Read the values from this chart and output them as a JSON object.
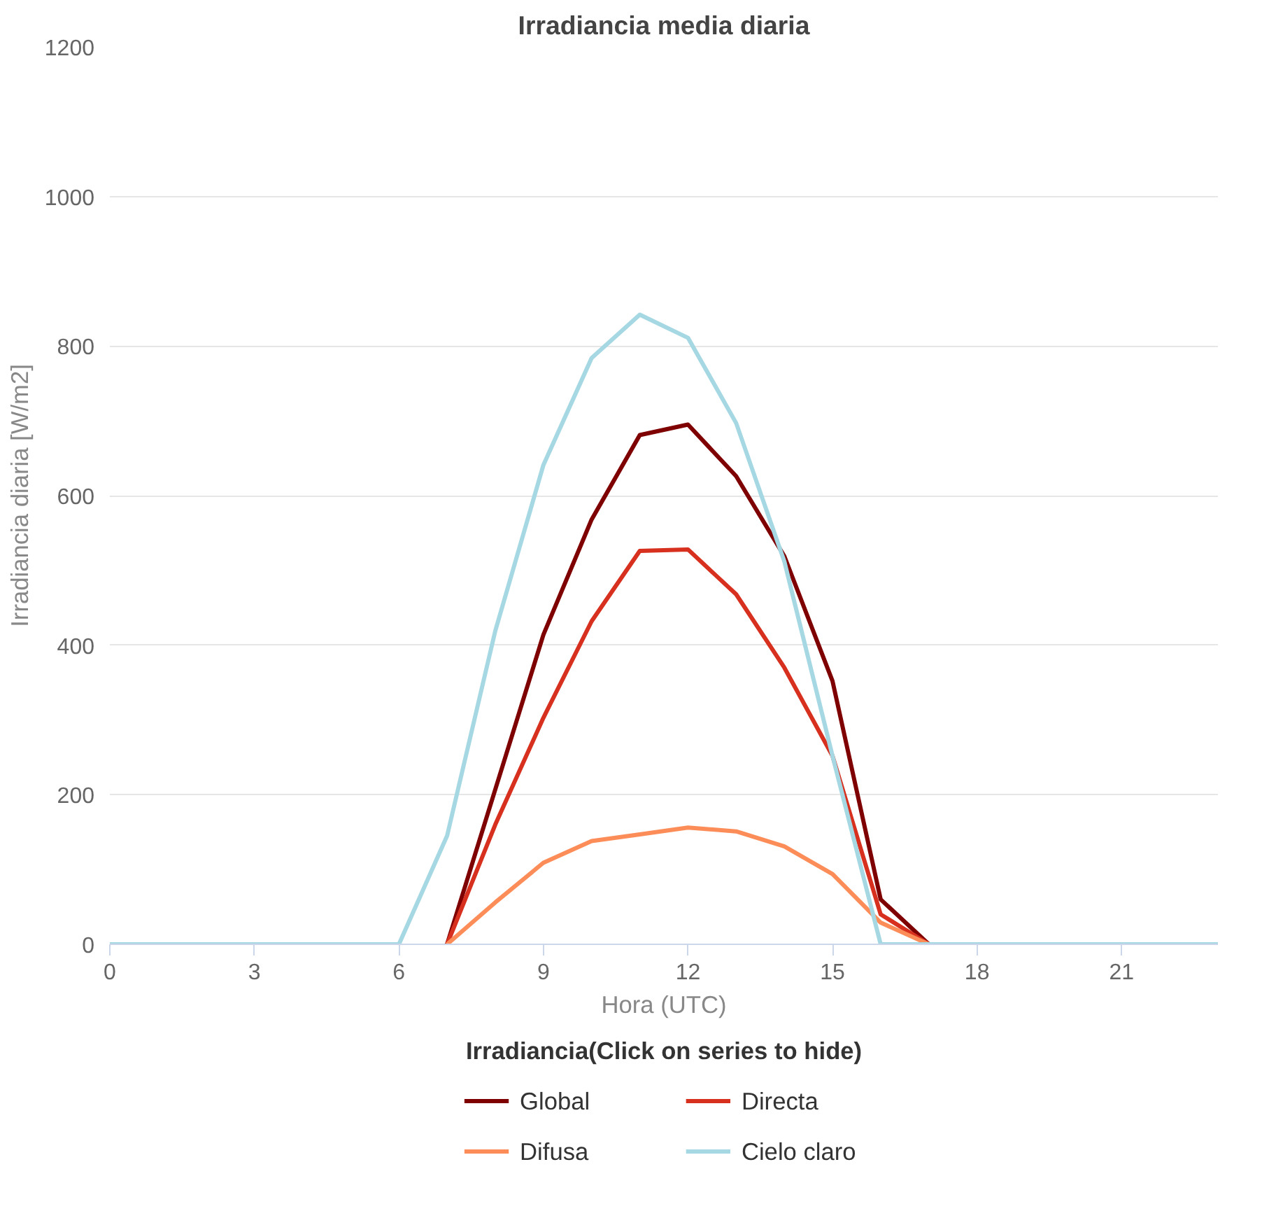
{
  "chart_data": {
    "type": "line",
    "title": "Irradiancia media diaria",
    "xlabel": "Hora (UTC)",
    "ylabel": "Irradiancia diaria [W/m2]",
    "legend_title": "Irradiancia(Click on series to hide)",
    "x": [
      0,
      1,
      2,
      3,
      4,
      5,
      6,
      7,
      8,
      9,
      10,
      11,
      12,
      13,
      14,
      15,
      16,
      17,
      18,
      19,
      20,
      21,
      22,
      23
    ],
    "xlim": [
      0,
      23
    ],
    "xticks": [
      0,
      3,
      6,
      9,
      12,
      15,
      18,
      21
    ],
    "ylim": [
      0,
      1200
    ],
    "yticks": [
      0,
      200,
      400,
      600,
      800,
      1000,
      1200
    ],
    "grid": "y",
    "legend": "bottom",
    "marker": "none",
    "line_style": "solid",
    "series": [
      {
        "name": "Global",
        "color": "#7f0000",
        "values": [
          null,
          null,
          null,
          null,
          null,
          null,
          null,
          0,
          207,
          414,
          568,
          681,
          695,
          626,
          519,
          352,
          60,
          0,
          null,
          null,
          null,
          null,
          null,
          null
        ]
      },
      {
        "name": "Directa",
        "color": "#d7301f",
        "values": [
          null,
          null,
          null,
          null,
          null,
          null,
          null,
          0,
          160,
          303,
          432,
          526,
          528,
          468,
          370,
          252,
          40,
          0,
          null,
          null,
          null,
          null,
          null,
          null
        ]
      },
      {
        "name": "Difusa",
        "color": "#fc8d59",
        "values": [
          null,
          null,
          null,
          null,
          null,
          null,
          null,
          0,
          56,
          109,
          138,
          147,
          156,
          151,
          131,
          94,
          29,
          0,
          null,
          null,
          null,
          null,
          null,
          null
        ]
      },
      {
        "name": "Cielo claro",
        "color": "#a6d8e3",
        "values": [
          0,
          0,
          0,
          0,
          0,
          0,
          0,
          145,
          419,
          641,
          784,
          842,
          811,
          697,
          512,
          252,
          0,
          0,
          0,
          0,
          0,
          0,
          0,
          0
        ]
      }
    ]
  }
}
